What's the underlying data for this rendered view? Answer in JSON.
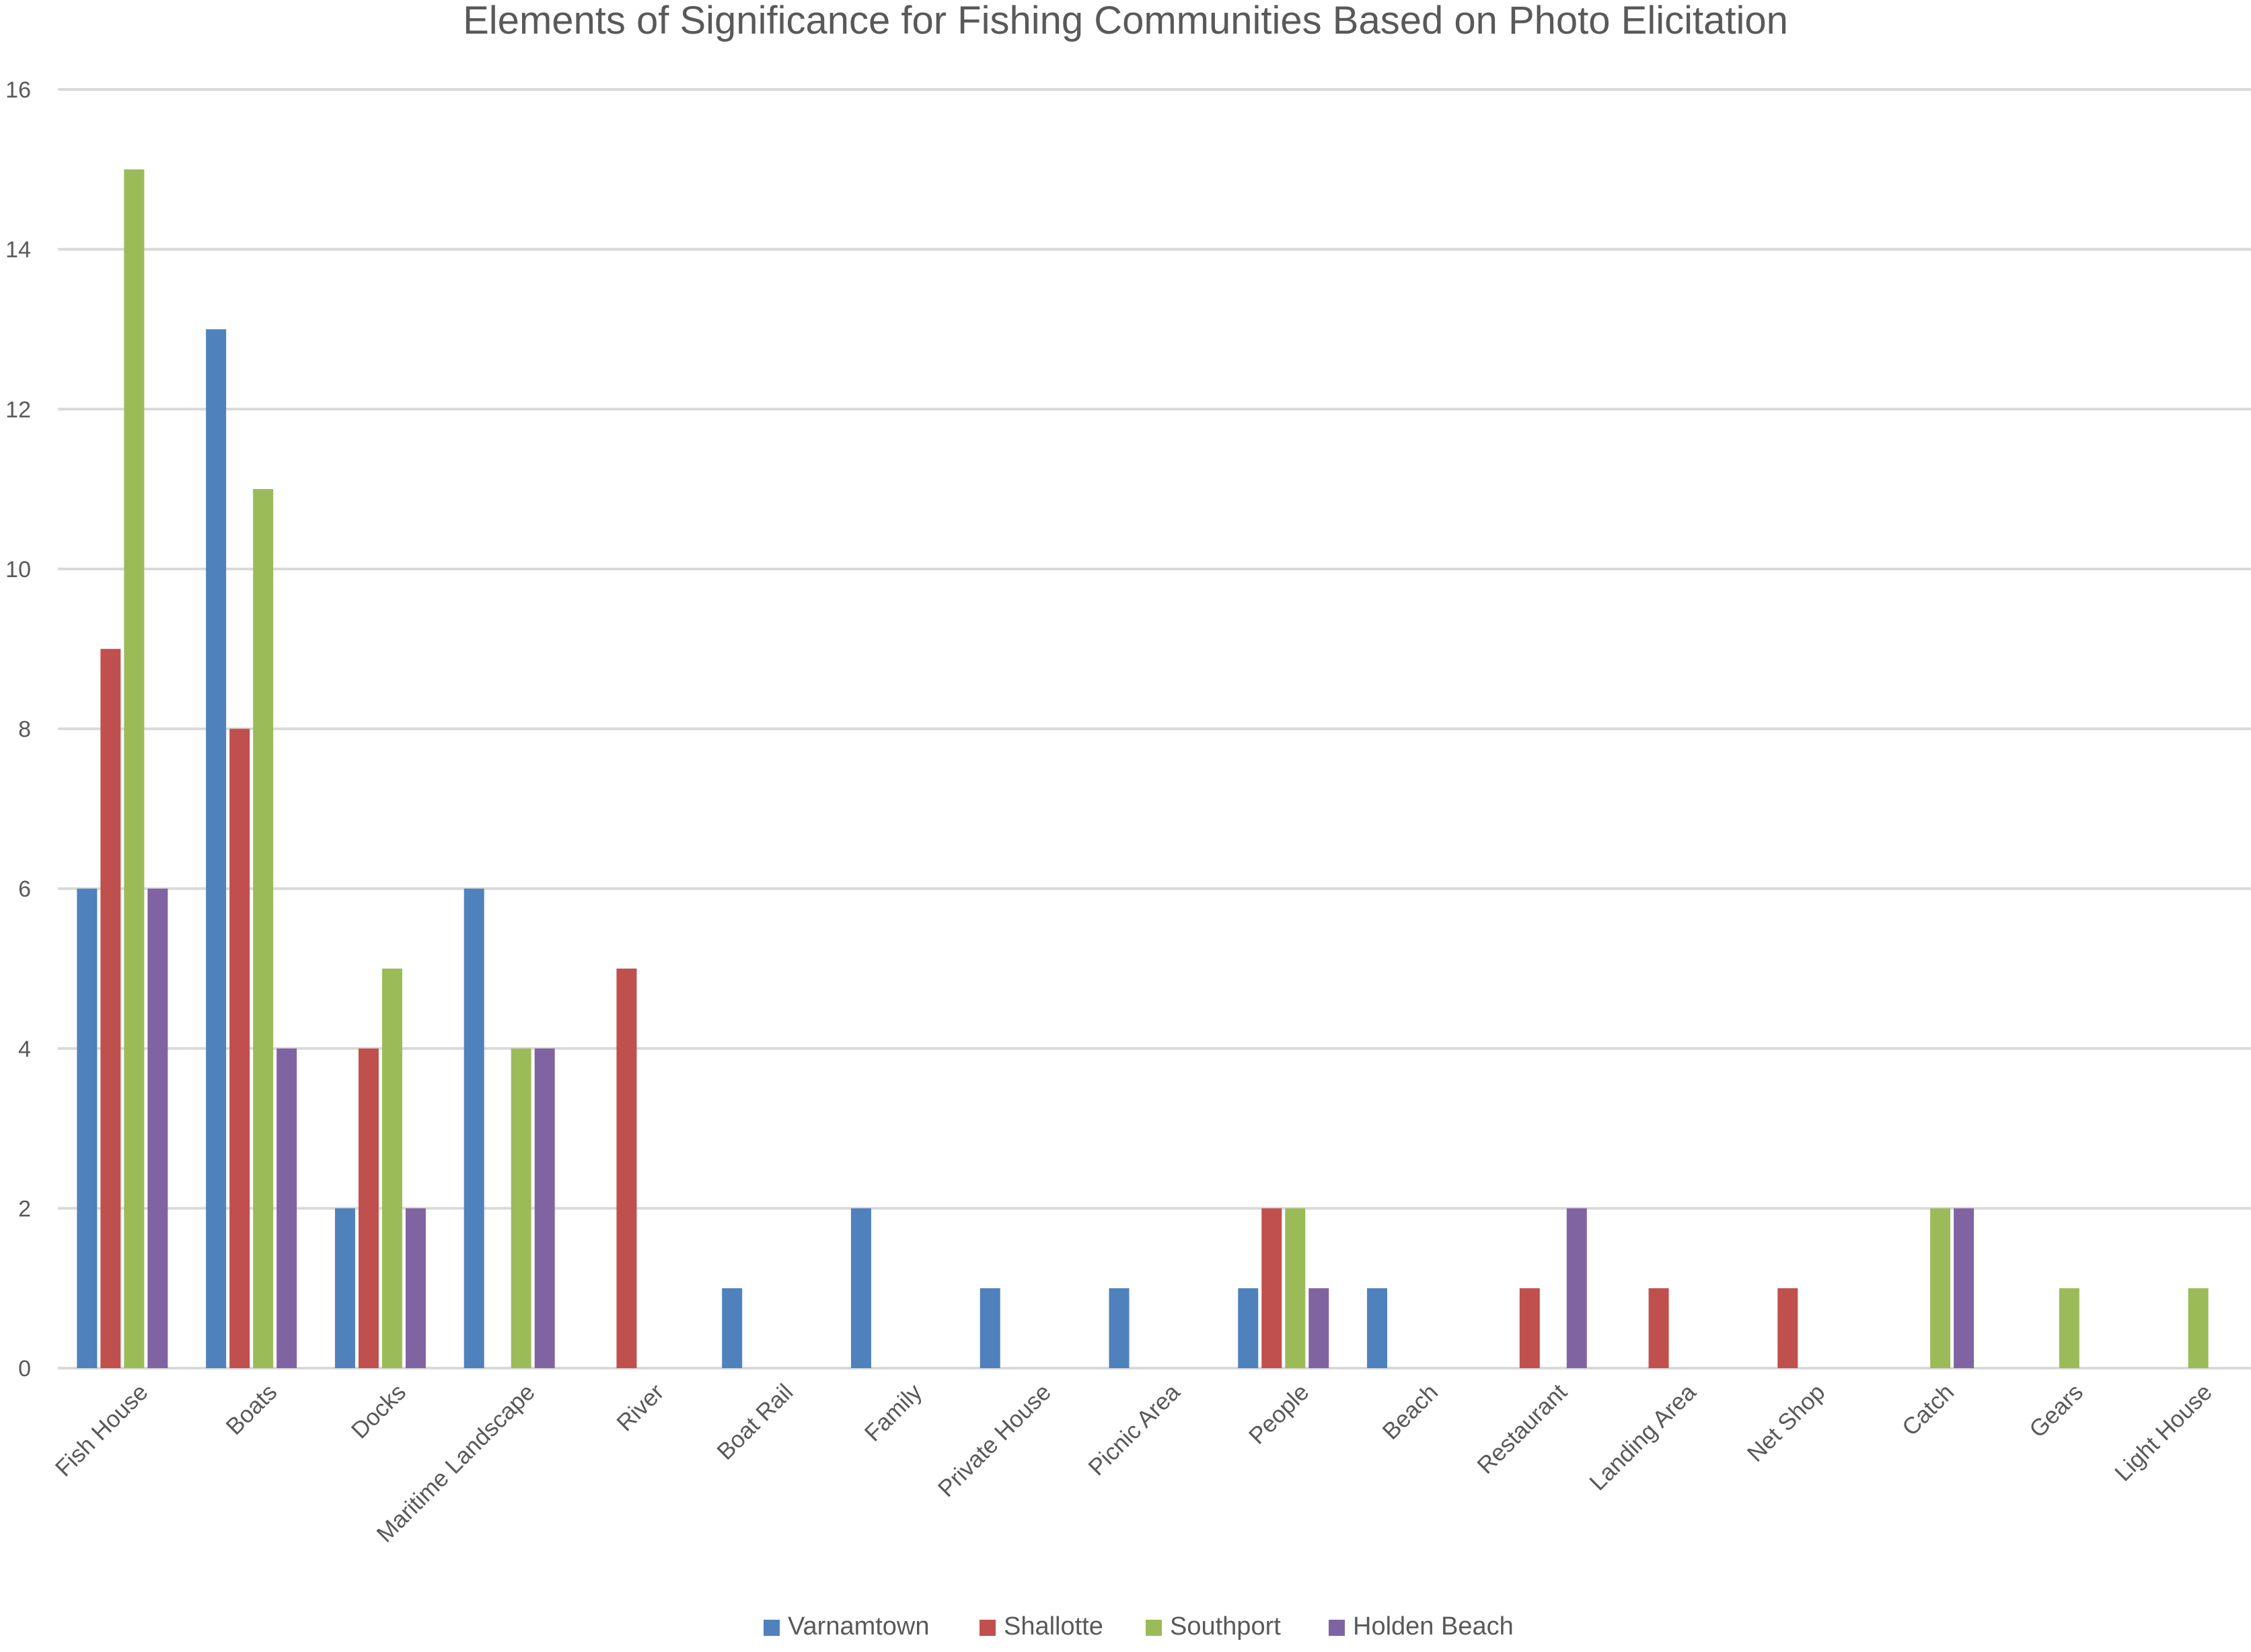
{
  "chart_data": {
    "type": "bar",
    "title": "Elements of Significance for Fishing Communities Based on Photo Elicitation",
    "xlabel": "",
    "ylabel": "",
    "ylim": [
      0,
      16
    ],
    "yticks": [
      0,
      2,
      4,
      6,
      8,
      10,
      12,
      14,
      16
    ],
    "grid": true,
    "legend_position": "bottom",
    "categories": [
      "Fish House",
      "Boats",
      "Docks",
      "Maritime Landscape",
      "River",
      "Boat Rail",
      "Family",
      "Private House",
      "Picnic Area",
      "People",
      "Beach",
      "Restaurant",
      "Landing Area",
      "Net Shop",
      "Catch",
      "Gears",
      "Light House"
    ],
    "series": [
      {
        "name": "Varnamtown",
        "color": "#4F81BD",
        "values": [
          6,
          13,
          2,
          6,
          0,
          1,
          2,
          1,
          1,
          1,
          1,
          0,
          0,
          0,
          0,
          0,
          0
        ]
      },
      {
        "name": "Shallotte",
        "color": "#C0504D",
        "values": [
          9,
          8,
          4,
          0,
          5,
          0,
          0,
          0,
          0,
          2,
          0,
          1,
          1,
          1,
          0,
          0,
          0
        ]
      },
      {
        "name": "Southport",
        "color": "#9BBB59",
        "values": [
          15,
          11,
          5,
          4,
          0,
          0,
          0,
          0,
          0,
          2,
          0,
          0,
          0,
          0,
          2,
          1,
          1
        ]
      },
      {
        "name": "Holden Beach",
        "color": "#8064A2",
        "values": [
          6,
          4,
          2,
          4,
          0,
          0,
          0,
          0,
          0,
          1,
          0,
          2,
          0,
          0,
          2,
          0,
          0
        ]
      }
    ]
  }
}
